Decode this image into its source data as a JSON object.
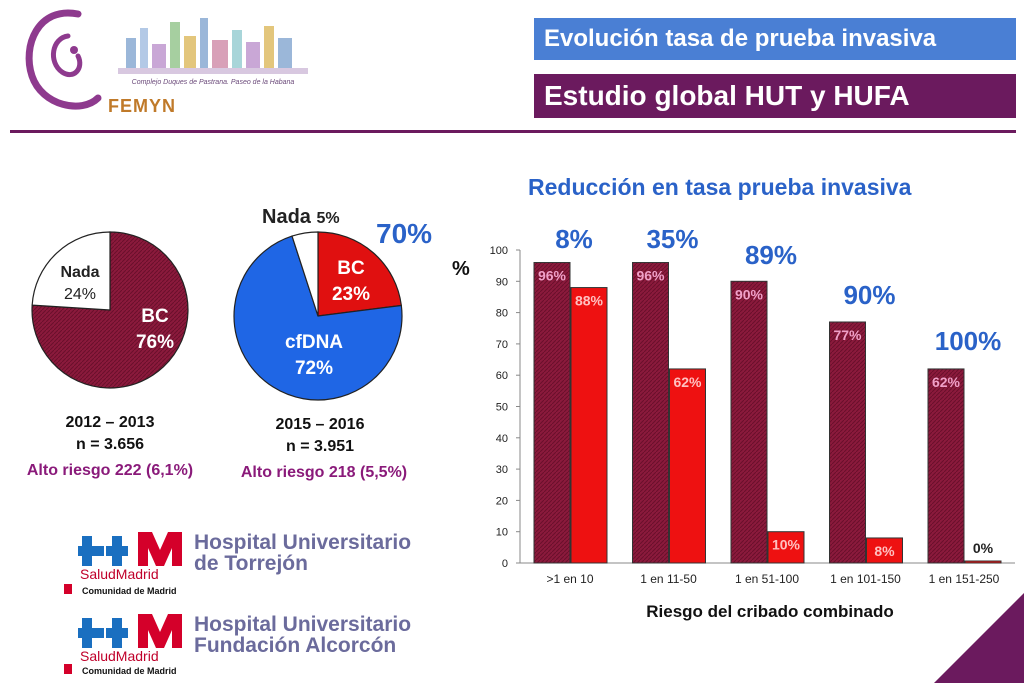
{
  "header": {
    "brand": "FEMYN",
    "banner_caption": "Complejo Duques de Pastrana. Paseo de la Habana",
    "title1": "Evolución tasa de prueba invasiva",
    "title2": "Estudio global HUT y HUFA"
  },
  "pie1": {
    "slices": [
      {
        "label": "BC",
        "pct_label": "76%",
        "value": 76,
        "color": "#8b1a3c"
      },
      {
        "label": "Nada",
        "pct_label": "24%",
        "value": 24,
        "color": "#ffffff"
      }
    ],
    "period": "2012 – 2013",
    "n": "n = 3.656",
    "risk": "Alto riesgo 222 (6,1%)"
  },
  "pie2": {
    "slices": [
      {
        "label": "BC",
        "pct_label": "23%",
        "value": 23,
        "color": "#e01010"
      },
      {
        "label": "cfDNA",
        "pct_label": "72%",
        "value": 72,
        "color": "#1f66e5"
      },
      {
        "label": "Nada",
        "pct_label": "5%",
        "value": 5,
        "color": "#ffffff"
      }
    ],
    "nada_label": "Nada",
    "nada_pct": "5%",
    "reduction": "70%",
    "period": "2015 – 2016",
    "n": "n = 3.951",
    "risk": "Alto riesgo 218 (5,5%)"
  },
  "chart_data": {
    "type": "bar",
    "title": "Reducción en tasa prueba invasiva",
    "xlabel": "Riesgo del cribado combinado",
    "ylabel": "%",
    "ylim": [
      0,
      100
    ],
    "yticks": [
      0,
      10,
      20,
      30,
      40,
      50,
      60,
      70,
      80,
      90,
      100
    ],
    "categories": [
      ">1 en 10",
      "1 en 11-50",
      "1 en 51-100",
      "1 en 101-150",
      "1 en 151-250"
    ],
    "series": [
      {
        "values": [
          96,
          96,
          90,
          77,
          62
        ],
        "labels": [
          "96%",
          "96%",
          "90%",
          "77%",
          "62%"
        ],
        "color": "#8b1a3c"
      },
      {
        "values": [
          88,
          62,
          10,
          8,
          0
        ],
        "labels": [
          "88%",
          "62%",
          "10%",
          "8%",
          "0%"
        ],
        "color": "#ee1111"
      }
    ],
    "reductions": [
      "8%",
      "35%",
      "89%",
      "90%",
      "100%"
    ]
  },
  "hospitals": [
    {
      "line1": "Hospital Universitario",
      "line2": "de Torrejón",
      "salud": "SaludMadrid",
      "cm": "Comunidad de Madrid"
    },
    {
      "line1": "Hospital Universitario",
      "line2": "Fundación Alcorcón",
      "salud": "SaludMadrid",
      "cm": "Comunidad de Madrid"
    }
  ]
}
